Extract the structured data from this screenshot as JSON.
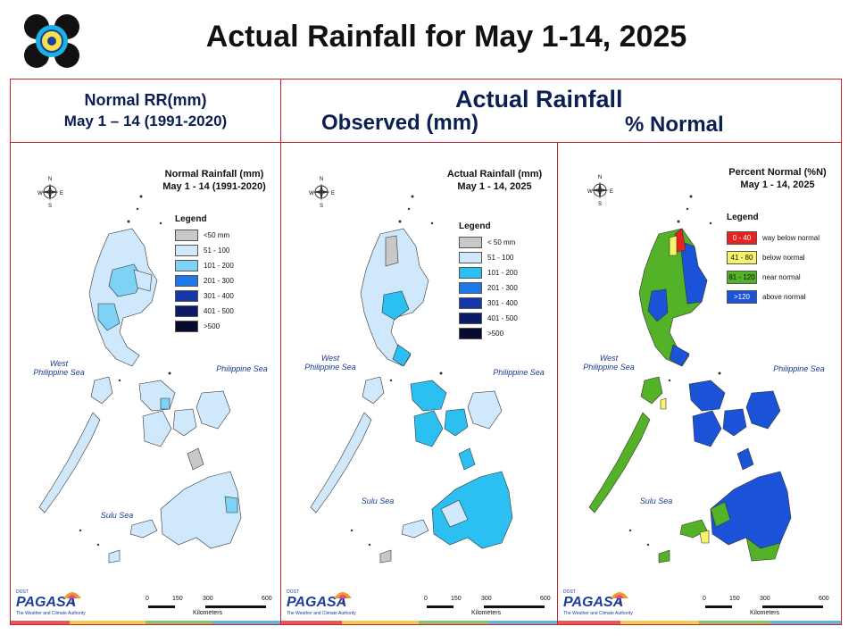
{
  "title": "Actual Rainfall for May 1-14, 2025",
  "header_left": {
    "line1": "Normal RR(mm)",
    "line2": "May 1 – 14 (1991-2020)"
  },
  "header_right": {
    "title": "Actual Rainfall",
    "observed": "Observed (mm)",
    "percent": "% Normal"
  },
  "panels": [
    {
      "map_title_1": "Normal Rainfall (mm)",
      "map_title_2": "May 1 - 14  (1991-2020)",
      "legend_title": "Legend",
      "legend": [
        {
          "label": "<50 mm",
          "color": "#c8c8c8"
        },
        {
          "label": "51 - 100",
          "color": "#cfe8fb"
        },
        {
          "label": "101 - 200",
          "color": "#7dd2f5"
        },
        {
          "label": "201 - 300",
          "color": "#1f78e6"
        },
        {
          "label": "301 - 400",
          "color": "#1436a8"
        },
        {
          "label": "401 - 500",
          "color": "#0c1b66"
        },
        {
          "label": ">500",
          "color": "#050a2e"
        }
      ]
    },
    {
      "map_title_1": "Actual Rainfall (mm)",
      "map_title_2": "May 1 - 14, 2025",
      "legend_title": "Legend",
      "legend": [
        {
          "label": "< 50 mm",
          "color": "#c8c8c8"
        },
        {
          "label": "51 - 100",
          "color": "#cfe8fb"
        },
        {
          "label": "101 - 200",
          "color": "#2cc0f2"
        },
        {
          "label": "201 - 300",
          "color": "#1f78e6"
        },
        {
          "label": "301 - 400",
          "color": "#1436a8"
        },
        {
          "label": "401 - 500",
          "color": "#0c1b66"
        },
        {
          "label": ">500",
          "color": "#050a2e"
        }
      ]
    },
    {
      "map_title_1": "Percent Normal (%N)",
      "map_title_2": "May 1 - 14, 2025",
      "legend_title": "Legend",
      "legend": [
        {
          "range": "0 - 40",
          "label": "way below normal",
          "color": "#e8231f",
          "text_color": "#ffffff"
        },
        {
          "range": "41 - 80",
          "label": "below normal",
          "color": "#f7f36a",
          "text_color": "#111111"
        },
        {
          "range": "81 - 120",
          "label": "near normal",
          "color": "#53b227",
          "text_color": "#111111"
        },
        {
          "range": ">120",
          "label": "above normal",
          "color": "#1b53d8",
          "text_color": "#ffffff"
        }
      ]
    }
  ],
  "map_labels": {
    "west_sea_1": "West",
    "west_sea_2": "Philippine Sea",
    "phil_sea": "Philippine Sea",
    "sulu_sea": "Sulu Sea"
  },
  "scale": {
    "ticks": [
      "0",
      "150",
      "300",
      "600"
    ],
    "unit": "Kilometers"
  },
  "compass": {
    "n": "N",
    "s": "S",
    "e": "E",
    "w": "W"
  },
  "logo": {
    "brand": "PAGASA",
    "top": "DOST",
    "sub": "The Weather and Climate Authority"
  },
  "colors": {
    "frame": "#c9272d",
    "header_text": "#0b1f53",
    "bar": [
      "#e05a5a",
      "#e7cf5a",
      "#8cc26b",
      "#62b3e0"
    ]
  }
}
